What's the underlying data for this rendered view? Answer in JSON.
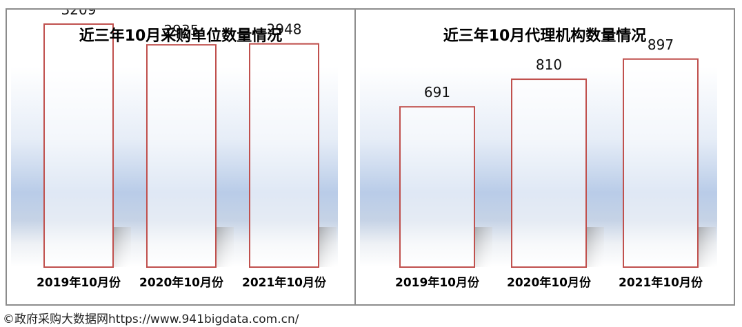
{
  "chart_data": [
    {
      "type": "bar",
      "title": "近三年10月采购单位数量情况",
      "categories": [
        "2019年10月份",
        "2020年10月份",
        "2021年10月份"
      ],
      "values": [
        3209,
        2935,
        2948
      ],
      "ylim": [
        0,
        3400
      ],
      "grid": false,
      "legend": "none",
      "bar_fill": "#ffffff",
      "bar_stroke": "#c0504d"
    },
    {
      "type": "bar",
      "title": "近三年10月代理机构数量情况",
      "categories": [
        "2019年10月份",
        "2020年10月份",
        "2021年10月份"
      ],
      "values": [
        691,
        810,
        897
      ],
      "ylim": [
        0,
        1110
      ],
      "grid": false,
      "legend": "none",
      "bar_fill": "#ffffff",
      "bar_stroke": "#c0504d"
    }
  ],
  "source_note": "©政府采购大数据网https://www.941bigdata.com.cn/",
  "colors": {
    "panel_border": "#8c8c8c",
    "backdrop_blue": "#b9cce8",
    "floor_shadow": "#9a9a9a"
  }
}
